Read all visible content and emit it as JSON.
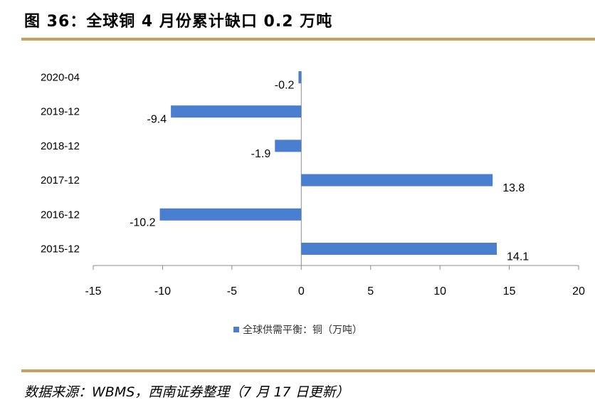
{
  "header": {
    "title": "图 36：全球铜 4 月份累计缺口 0.2 万吨"
  },
  "footer": {
    "source": "数据来源：WBMS，西南证券整理（7 月 17 日更新）"
  },
  "colors": {
    "bar": "#4a7ecf",
    "rule": "#c8a15a",
    "axis": "#8c8c8c"
  },
  "chart_data": {
    "type": "bar",
    "orientation": "horizontal",
    "categories": [
      "2020-04",
      "2019-12",
      "2018-12",
      "2017-12",
      "2016-12",
      "2015-12"
    ],
    "series": [
      {
        "name": "全球供需平衡：铜（万吨）",
        "values": [
          -0.2,
          -9.4,
          -1.9,
          13.8,
          -10.2,
          14.1
        ]
      }
    ],
    "value_labels": [
      "-0.2",
      "-9.4",
      "-1.9",
      "13.8",
      "-10.2",
      "14.1"
    ],
    "xlim": [
      -15,
      20
    ],
    "xticks": [
      "-15",
      "-10",
      "-5",
      "0",
      "5",
      "10",
      "15",
      "20"
    ],
    "grid": false,
    "legend_position": "bottom"
  }
}
